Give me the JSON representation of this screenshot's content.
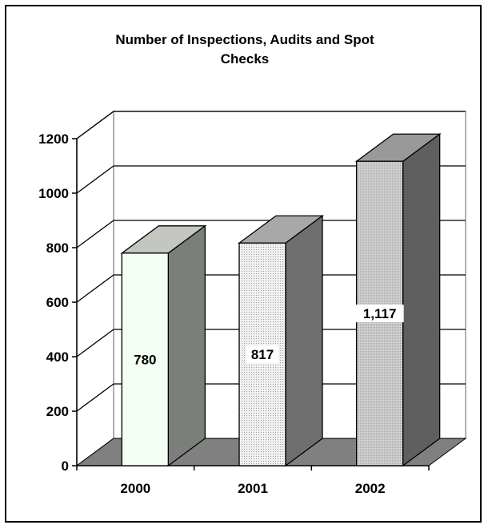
{
  "chart_data": {
    "type": "bar",
    "title": "Number of Inspections, Audits and Spot Checks",
    "categories": [
      "2000",
      "2001",
      "2002"
    ],
    "values": [
      780,
      817,
      1117
    ],
    "data_labels": [
      "780",
      "817",
      "1,117"
    ],
    "yticks": [
      "0",
      "200",
      "400",
      "600",
      "800",
      "1000",
      "1200"
    ],
    "ylim": [
      0,
      1200
    ],
    "xlabel": "",
    "ylabel": "",
    "grid": true,
    "legend": "none",
    "style": "3d-column",
    "bar_colors": [
      {
        "front": "#f4fff4",
        "top": "#c3c7c0",
        "side": "#7a7f79"
      },
      {
        "front": "#eeeeee",
        "top": "#a8a8a8",
        "side": "#6f6f6f"
      },
      {
        "front": "#c8c8c8",
        "top": "#999999",
        "side": "#5f5f5f"
      }
    ]
  }
}
